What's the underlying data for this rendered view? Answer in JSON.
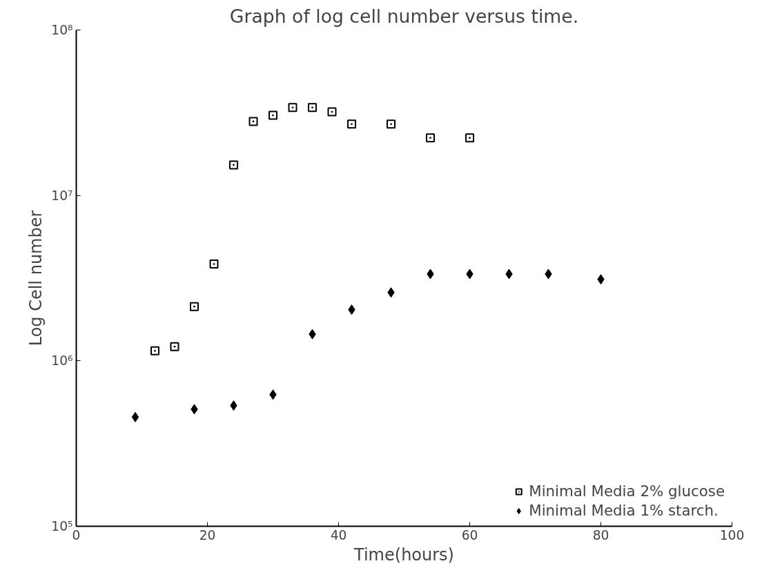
{
  "chart_data": {
    "type": "scatter",
    "title": "Graph of log cell number versus time.",
    "xlabel": "Time(hours)",
    "ylabel": "Log Cell number",
    "log": "y",
    "grid": false,
    "legend": "bottom right",
    "xlim": [
      0,
      100
    ],
    "xticks": [
      0,
      20,
      40,
      60,
      80,
      100
    ],
    "ylim": [
      100000,
      100000000
    ],
    "yticks": [
      {
        "value": 100000,
        "label": "10⁵"
      },
      {
        "value": 1000000,
        "label": "10⁶"
      },
      {
        "value": 10000000,
        "label": "10⁷"
      },
      {
        "value": 100000000,
        "label": "10⁸"
      }
    ],
    "series": [
      {
        "name": "Minimal Media 2% glucose",
        "color": "#000000",
        "marker": "square",
        "x": [
          12,
          15,
          18,
          21,
          24,
          27,
          30,
          33,
          36,
          39,
          42,
          48,
          54,
          60
        ],
        "values": [
          1150000,
          1220000,
          2130000,
          3850000,
          15300000,
          28000000,
          30500000,
          34000000,
          34000000,
          32000000,
          27000000,
          27000000,
          22300000,
          22300000
        ]
      },
      {
        "name": "Minimal Media 1% starch.",
        "color": "#000000",
        "marker": "diamond",
        "x": [
          9,
          18,
          24,
          30,
          36,
          42,
          48,
          54,
          60,
          66,
          72,
          80
        ],
        "values": [
          457000,
          510000,
          537000,
          625000,
          1450000,
          2040000,
          2590000,
          3350000,
          3350000,
          3350000,
          3350000,
          3110000
        ]
      }
    ]
  }
}
